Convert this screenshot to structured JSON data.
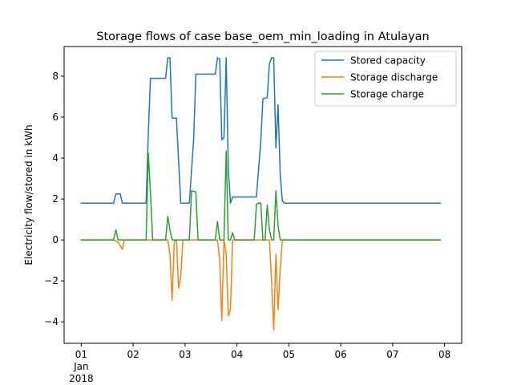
{
  "chart_data": {
    "type": "line",
    "title": "Storage flows of case base_oem_min_loading in Atulayan",
    "xlabel": "",
    "ylabel": "Electricity flow/stored in kWh",
    "x_tick_labels": [
      {
        "x": 0,
        "lines": [
          "01",
          "Jan",
          "2018"
        ]
      },
      {
        "x": 1,
        "lines": [
          "02"
        ]
      },
      {
        "x": 2,
        "lines": [
          "03"
        ]
      },
      {
        "x": 3,
        "lines": [
          "04"
        ]
      },
      {
        "x": 4,
        "lines": [
          "05"
        ]
      },
      {
        "x": 5,
        "lines": [
          "06"
        ]
      },
      {
        "x": 6,
        "lines": [
          "07"
        ]
      },
      {
        "x": 7,
        "lines": [
          "08"
        ]
      }
    ],
    "xlim": [
      -0.33,
      7.33
    ],
    "ylim": [
      -5.05,
      9.45
    ],
    "y_ticks": [
      -4,
      -2,
      0,
      2,
      4,
      6,
      8
    ],
    "legend_position": "top-right",
    "grid": false,
    "series": [
      {
        "name": "Stored capacity",
        "color": "#1f77b4",
        "points": [
          [
            0,
            1.8
          ],
          [
            0.625,
            1.8
          ],
          [
            0.667,
            2.25
          ],
          [
            0.75,
            2.25
          ],
          [
            0.792,
            1.8
          ],
          [
            1.25,
            1.8
          ],
          [
            1.292,
            5.2
          ],
          [
            1.333,
            7.9
          ],
          [
            1.625,
            7.9
          ],
          [
            1.667,
            8.9
          ],
          [
            1.708,
            8.9
          ],
          [
            1.75,
            5.95
          ],
          [
            1.833,
            5.95
          ],
          [
            1.917,
            1.8
          ],
          [
            2.083,
            1.8
          ],
          [
            2.167,
            5.0
          ],
          [
            2.208,
            8.1
          ],
          [
            2.583,
            8.1
          ],
          [
            2.625,
            8.9
          ],
          [
            2.667,
            8.85
          ],
          [
            2.708,
            4.9
          ],
          [
            2.75,
            5.0
          ],
          [
            2.792,
            8.9
          ],
          [
            2.833,
            3.5
          ],
          [
            2.875,
            1.8
          ],
          [
            2.917,
            2.1
          ],
          [
            3.375,
            2.1
          ],
          [
            3.458,
            4.8
          ],
          [
            3.5,
            6.9
          ],
          [
            3.583,
            6.95
          ],
          [
            3.625,
            8.6
          ],
          [
            3.667,
            8.9
          ],
          [
            3.708,
            8.9
          ],
          [
            3.75,
            4.5
          ],
          [
            3.792,
            6.6
          ],
          [
            3.833,
            3.2
          ],
          [
            3.875,
            1.9
          ],
          [
            3.917,
            1.8
          ],
          [
            6.917,
            1.8
          ]
        ]
      },
      {
        "name": "Storage discharge",
        "color": "#ff7f0e",
        "points": [
          [
            0,
            0
          ],
          [
            0.625,
            0
          ],
          [
            0.708,
            -0.1
          ],
          [
            0.792,
            -0.45
          ],
          [
            0.833,
            0
          ],
          [
            1.667,
            0
          ],
          [
            1.708,
            -0.7
          ],
          [
            1.75,
            -2.95
          ],
          [
            1.792,
            -0.1
          ],
          [
            1.833,
            0
          ],
          [
            1.875,
            -2.35
          ],
          [
            1.917,
            -1.8
          ],
          [
            1.958,
            0
          ],
          [
            2.625,
            0
          ],
          [
            2.667,
            -1.0
          ],
          [
            2.708,
            -3.95
          ],
          [
            2.75,
            0
          ],
          [
            2.792,
            -0.7
          ],
          [
            2.833,
            -3.7
          ],
          [
            2.875,
            -3.4
          ],
          [
            2.917,
            0
          ],
          [
            3.583,
            0
          ],
          [
            3.625,
            0
          ],
          [
            3.667,
            -2.0
          ],
          [
            3.708,
            -4.4
          ],
          [
            3.75,
            -0.7
          ],
          [
            3.792,
            -3.4
          ],
          [
            3.833,
            -1.4
          ],
          [
            3.875,
            0
          ],
          [
            6.917,
            0
          ]
        ]
      },
      {
        "name": "Storage charge",
        "color": "#2ca02c",
        "points": [
          [
            0,
            0
          ],
          [
            0.625,
            0
          ],
          [
            0.667,
            0.5
          ],
          [
            0.708,
            0
          ],
          [
            1.25,
            0
          ],
          [
            1.292,
            4.25
          ],
          [
            1.333,
            2.35
          ],
          [
            1.375,
            0
          ],
          [
            1.625,
            0
          ],
          [
            1.667,
            1.15
          ],
          [
            1.708,
            0.5
          ],
          [
            1.75,
            0
          ],
          [
            2.083,
            0
          ],
          [
            2.125,
            2.4
          ],
          [
            2.208,
            2.35
          ],
          [
            2.25,
            0
          ],
          [
            2.583,
            0
          ],
          [
            2.625,
            0.9
          ],
          [
            2.667,
            0
          ],
          [
            2.75,
            0
          ],
          [
            2.792,
            4.35
          ],
          [
            2.833,
            0
          ],
          [
            2.875,
            0
          ],
          [
            2.917,
            0.35
          ],
          [
            2.958,
            0
          ],
          [
            3.333,
            0
          ],
          [
            3.375,
            1.75
          ],
          [
            3.417,
            1.8
          ],
          [
            3.458,
            1.8
          ],
          [
            3.5,
            0
          ],
          [
            3.542,
            0
          ],
          [
            3.583,
            1.7
          ],
          [
            3.625,
            0.5
          ],
          [
            3.667,
            0
          ],
          [
            3.708,
            0
          ],
          [
            3.75,
            2.4
          ],
          [
            3.792,
            0.7
          ],
          [
            3.833,
            0
          ],
          [
            6.917,
            0
          ]
        ]
      }
    ]
  }
}
